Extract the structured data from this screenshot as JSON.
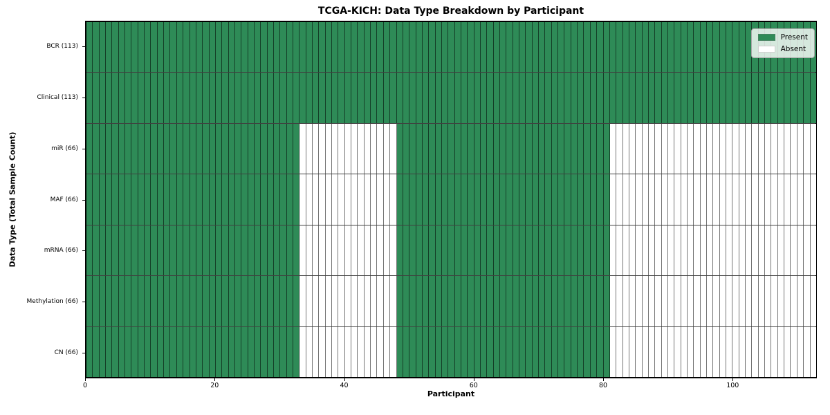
{
  "chart_data": {
    "type": "heatmap",
    "title": "TCGA-KICH: Data Type Breakdown by Participant",
    "xlabel": "Participant",
    "ylabel": "Data Type (Total Sample Count)",
    "n_participants": 113,
    "x_ticks": [
      0,
      20,
      40,
      60,
      80,
      100
    ],
    "xlim": [
      0,
      113
    ],
    "grid": "cell-borders",
    "legend_position": "upper right",
    "legend": [
      {
        "label": "Present",
        "color": "#2e8b57"
      },
      {
        "label": "Absent",
        "color": "#ffffff"
      }
    ],
    "rows": [
      {
        "label": "BCR (113)",
        "data_type": "BCR",
        "total_sample_count": 113,
        "present_ranges": [
          [
            0,
            113
          ]
        ]
      },
      {
        "label": "Clinical (113)",
        "data_type": "Clinical",
        "total_sample_count": 113,
        "present_ranges": [
          [
            0,
            113
          ]
        ]
      },
      {
        "label": "miR (66)",
        "data_type": "miR",
        "total_sample_count": 66,
        "present_ranges": [
          [
            0,
            33
          ],
          [
            48,
            81
          ]
        ]
      },
      {
        "label": "MAF (66)",
        "data_type": "MAF",
        "total_sample_count": 66,
        "present_ranges": [
          [
            0,
            33
          ],
          [
            48,
            81
          ]
        ]
      },
      {
        "label": "mRNA (66)",
        "data_type": "mRNA",
        "total_sample_count": 66,
        "present_ranges": [
          [
            0,
            33
          ],
          [
            48,
            81
          ]
        ]
      },
      {
        "label": "Methylation (66)",
        "data_type": "Methylation",
        "total_sample_count": 66,
        "present_ranges": [
          [
            0,
            33
          ],
          [
            48,
            81
          ]
        ]
      },
      {
        "label": "CN (66)",
        "data_type": "CN",
        "total_sample_count": 66,
        "present_ranges": [
          [
            0,
            33
          ],
          [
            48,
            81
          ]
        ]
      }
    ],
    "colors": {
      "present": "#2e8b57",
      "absent": "#ffffff",
      "cell_edge": "rgba(0,0,0,0.55)",
      "row_edge": "rgba(0,0,0,0.75)",
      "spine": "#000000",
      "background": "#ffffff"
    }
  }
}
